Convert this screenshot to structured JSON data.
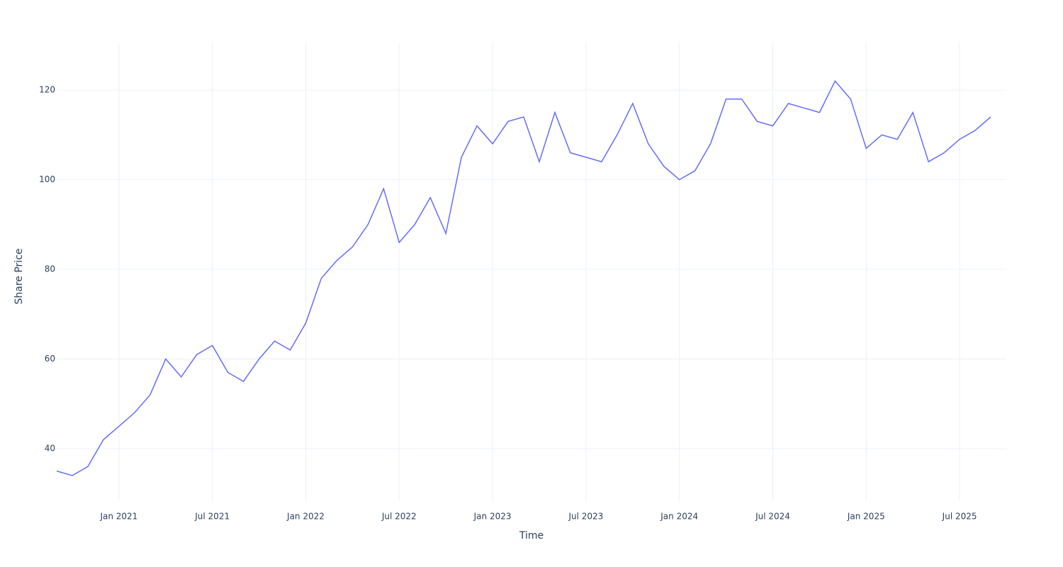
{
  "chart_data": {
    "type": "line",
    "x_label": "Time",
    "y_label": "Share Price",
    "x": [
      "2020-09",
      "2020-10",
      "2020-11",
      "2020-12",
      "2021-01",
      "2021-02",
      "2021-03",
      "2021-04",
      "2021-05",
      "2021-06",
      "2021-07",
      "2021-08",
      "2021-09",
      "2021-10",
      "2021-11",
      "2021-12",
      "2022-01",
      "2022-02",
      "2022-03",
      "2022-04",
      "2022-05",
      "2022-06",
      "2022-07",
      "2022-08",
      "2022-09",
      "2022-10",
      "2022-11",
      "2022-12",
      "2023-01",
      "2023-02",
      "2023-03",
      "2023-04",
      "2023-05",
      "2023-06",
      "2023-07",
      "2023-08",
      "2023-09",
      "2023-10",
      "2023-11",
      "2023-12",
      "2024-01",
      "2024-02",
      "2024-03",
      "2024-04",
      "2024-05",
      "2024-06",
      "2024-07",
      "2024-08",
      "2024-09",
      "2024-10",
      "2024-11",
      "2024-12",
      "2025-01",
      "2025-02",
      "2025-03",
      "2025-04",
      "2025-05",
      "2025-06",
      "2025-07",
      "2025-08",
      "2025-09"
    ],
    "series": [
      {
        "name": "Share Price",
        "color": "#636efa",
        "values": [
          35,
          34,
          36,
          42,
          45,
          48,
          52,
          60,
          56,
          61,
          63,
          57,
          55,
          60,
          64,
          62,
          68,
          78,
          82,
          85,
          90,
          98,
          86,
          90,
          96,
          88,
          105,
          112,
          108,
          113,
          114,
          104,
          115,
          106,
          105,
          104,
          110,
          117,
          108,
          103,
          100,
          102,
          108,
          118,
          118,
          113,
          112,
          117,
          116,
          115,
          122,
          118,
          107,
          110,
          109,
          115,
          104,
          106,
          109,
          111,
          114
        ]
      }
    ],
    "xlim": [
      "2020-09",
      "2025-10"
    ],
    "xticks": [
      {
        "value": "2021-01",
        "label": "Jan 2021"
      },
      {
        "value": "2021-07",
        "label": "Jul 2021"
      },
      {
        "value": "2022-01",
        "label": "Jan 2022"
      },
      {
        "value": "2022-07",
        "label": "Jul 2022"
      },
      {
        "value": "2023-01",
        "label": "Jan 2023"
      },
      {
        "value": "2023-07",
        "label": "Jul 2023"
      },
      {
        "value": "2024-01",
        "label": "Jan 2024"
      },
      {
        "value": "2024-07",
        "label": "Jul 2024"
      },
      {
        "value": "2025-01",
        "label": "Jan 2025"
      },
      {
        "value": "2025-07",
        "label": "Jul 2025"
      }
    ],
    "ylim": [
      28.3,
      130.6
    ],
    "yticks": [
      40,
      60,
      80,
      100,
      120
    ],
    "grid": true
  }
}
